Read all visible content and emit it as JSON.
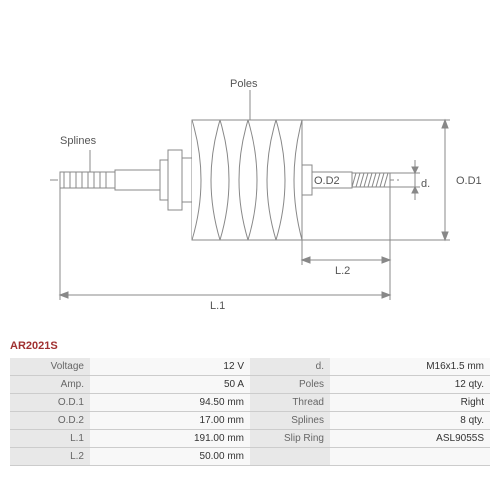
{
  "partNumber": "AR2021S",
  "labels": {
    "splines": "Splines",
    "poles": "Poles",
    "od1": "O.D1",
    "od2": "O.D2",
    "d": "d.",
    "l1": "L.1",
    "l2": "L.2"
  },
  "specs": {
    "rows": [
      {
        "k1": "Voltage",
        "v1": "12 V",
        "k2": "d.",
        "v2": "M16x1.5 mm"
      },
      {
        "k1": "Amp.",
        "v1": "50 A",
        "k2": "Poles",
        "v2": "12 qty."
      },
      {
        "k1": "O.D.1",
        "v1": "94.50 mm",
        "k2": "Thread",
        "v2": "Right"
      },
      {
        "k1": "O.D.2",
        "v1": "17.00 mm",
        "k2": "Splines",
        "v2": "8 qty."
      },
      {
        "k1": "L.1",
        "v1": "191.00 mm",
        "k2": "Slip Ring",
        "v2": "ASL9055S"
      },
      {
        "k1": "L.2",
        "v1": "50.00 mm",
        "k2": "",
        "v2": ""
      }
    ]
  },
  "style": {
    "stroke": "#888888",
    "strokeWidth": 1,
    "fill": "#ffffff",
    "dimStroke": "#888888",
    "fontColor": "#555555"
  }
}
